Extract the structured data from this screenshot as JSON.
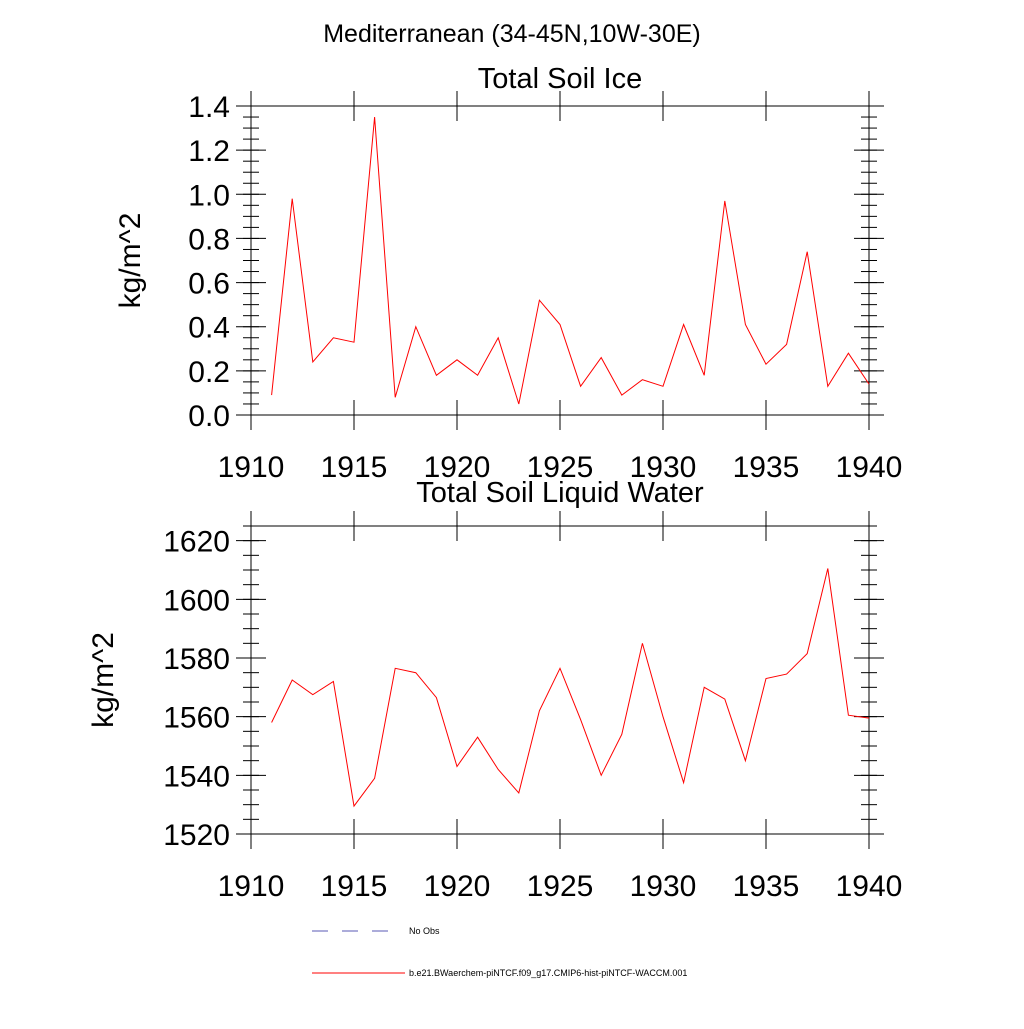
{
  "figure": {
    "main_title": "Mediterranean (34-45N,10W-30E)"
  },
  "chart_data": [
    {
      "type": "line",
      "title": "Total Soil Ice",
      "xlabel": "",
      "ylabel": "kg/m^2",
      "xlim": [
        1910,
        1940
      ],
      "ylim": [
        0.0,
        1.4
      ],
      "x_ticks": [
        1910,
        1915,
        1920,
        1925,
        1930,
        1935,
        1940
      ],
      "x_tick_labels": [
        "1910",
        "1915",
        "1920",
        "1925",
        "1930",
        "1935",
        "1940"
      ],
      "y_ticks": [
        0.0,
        0.2,
        0.4,
        0.6,
        0.8,
        1.0,
        1.2,
        1.4
      ],
      "y_tick_labels": [
        "0.0",
        "0.2",
        "0.4",
        "0.6",
        "0.8",
        "1.0",
        "1.2",
        "1.4"
      ],
      "grid": false,
      "x": [
        1911,
        1912,
        1913,
        1914,
        1915,
        1916,
        1917,
        1918,
        1919,
        1920,
        1921,
        1922,
        1923,
        1924,
        1925,
        1926,
        1927,
        1928,
        1929,
        1930,
        1931,
        1932,
        1933,
        1934,
        1935,
        1936,
        1937,
        1938,
        1939,
        1940
      ],
      "series": [
        {
          "name": "b.e21.BWaerchem-piNTCF.f09_g17.CMIP6-hist-piNTCF-WACCM.001",
          "color": "#ff0000",
          "values": [
            0.09,
            0.98,
            0.24,
            0.35,
            0.33,
            1.35,
            0.08,
            0.4,
            0.18,
            0.25,
            0.18,
            0.35,
            0.05,
            0.52,
            0.41,
            0.13,
            0.26,
            0.09,
            0.16,
            0.13,
            0.41,
            0.18,
            0.97,
            0.41,
            0.23,
            0.32,
            0.74,
            0.13,
            0.28,
            0.14
          ]
        }
      ]
    },
    {
      "type": "line",
      "title": "Total Soil Liquid Water",
      "xlabel": "",
      "ylabel": "kg/m^2",
      "xlim": [
        1910,
        1940
      ],
      "ylim": [
        1520,
        1625
      ],
      "x_ticks": [
        1910,
        1915,
        1920,
        1925,
        1930,
        1935,
        1940
      ],
      "x_tick_labels": [
        "1910",
        "1915",
        "1920",
        "1925",
        "1930",
        "1935",
        "1940"
      ],
      "y_ticks": [
        1520,
        1540,
        1560,
        1580,
        1600,
        1620
      ],
      "y_tick_labels": [
        "1520",
        "1540",
        "1560",
        "1580",
        "1600",
        "1620"
      ],
      "grid": false,
      "x": [
        1911,
        1912,
        1913,
        1914,
        1915,
        1916,
        1917,
        1918,
        1919,
        1920,
        1921,
        1922,
        1923,
        1924,
        1925,
        1926,
        1927,
        1928,
        1929,
        1930,
        1931,
        1932,
        1933,
        1934,
        1935,
        1936,
        1937,
        1938,
        1939,
        1940
      ],
      "series": [
        {
          "name": "b.e21.BWaerchem-piNTCF.f09_g17.CMIP6-hist-piNTCF-WACCM.001",
          "color": "#ff0000",
          "values": [
            1558.0,
            1572.5,
            1567.5,
            1572.0,
            1529.5,
            1539.0,
            1576.5,
            1575.0,
            1566.5,
            1543.0,
            1553.0,
            1542.0,
            1534.0,
            1562.0,
            1576.5,
            1559.0,
            1540.0,
            1554.0,
            1585.0,
            1560.0,
            1537.5,
            1570.0,
            1566.0,
            1545.0,
            1573.0,
            1574.5,
            1581.5,
            1610.5,
            1560.5,
            1559.5
          ]
        }
      ]
    }
  ],
  "legend": {
    "placement": "bottom",
    "entries": [
      {
        "label": "No Obs",
        "style": "dashed",
        "color": "#5a5ab4"
      },
      {
        "label": "b.e21.BWaerchem-piNTCF.f09_g17.CMIP6-hist-piNTCF-WACCM.001",
        "style": "solid",
        "color": "#ff0000"
      }
    ]
  }
}
